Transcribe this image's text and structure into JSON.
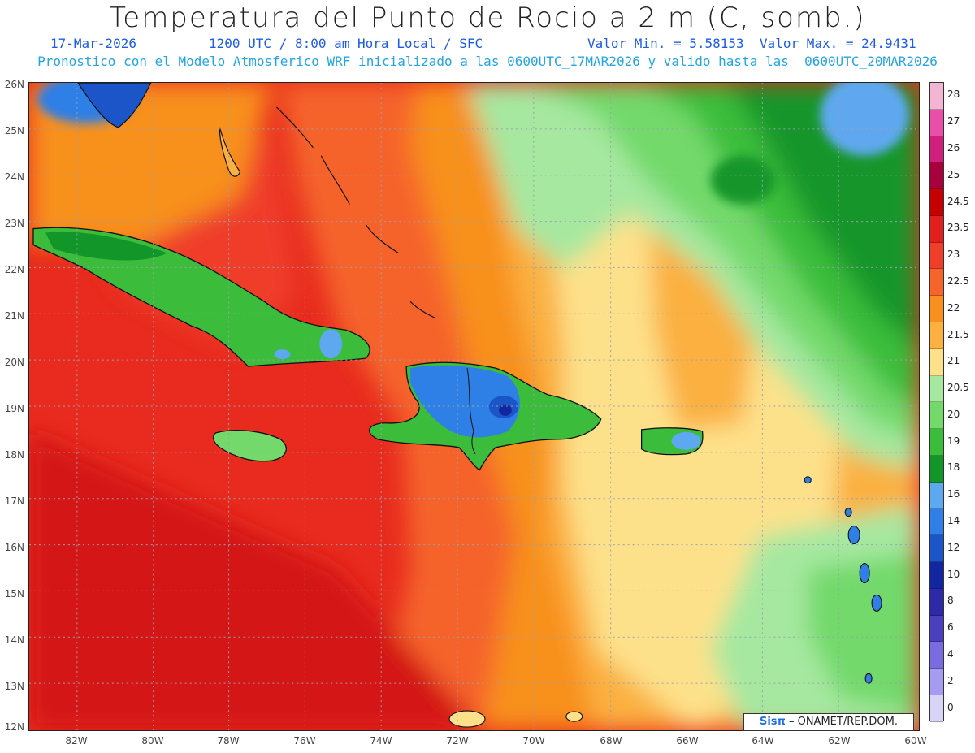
{
  "header": {
    "title": "Temperatura del Punto de Rocio a 2 m (C, somb.)",
    "date": "17-Mar-2026",
    "time": "1200 UTC / 8:00 am Hora Local / SFC",
    "minmax": "Valor Min. = 5.58153  Valor Max. = 24.9431",
    "model_line": "Pronostico con el Modelo Atmosferico WRF inicializado a las 0600UTC_17MAR2026 y valido hasta las  0600UTC_20MAR2026"
  },
  "axes": {
    "lat_labels": [
      "26N",
      "25N",
      "24N",
      "23N",
      "22N",
      "21N",
      "20N",
      "19N",
      "18N",
      "17N",
      "16N",
      "15N",
      "14N",
      "13N",
      "12N"
    ],
    "lon_labels": [
      "82W",
      "80W",
      "78W",
      "76W",
      "74W",
      "72W",
      "70W",
      "68W",
      "66W",
      "64W",
      "62W",
      "60W"
    ]
  },
  "colorbar": {
    "labels": [
      "28",
      "27",
      "26",
      "25",
      "24.5",
      "23.5",
      "23",
      "22.5",
      "22",
      "21.5",
      "21",
      "20.5",
      "20",
      "19",
      "18",
      "16",
      "14",
      "12",
      "10",
      "8",
      "6",
      "4",
      "2",
      "0"
    ],
    "colors": [
      "#f2b5d4",
      "#e84fa9",
      "#d11f7e",
      "#a8003c",
      "#c60000",
      "#e21f1f",
      "#ef3e2a",
      "#f5642a",
      "#f8901f",
      "#fbb040",
      "#fde18a",
      "#a6e8a0",
      "#72d96a",
      "#3bbd3b",
      "#12962a",
      "#5ea8ef",
      "#2e7fe6",
      "#1b55c8",
      "#1226a0",
      "#2c2aa6",
      "#4a3fbd",
      "#7a6be0",
      "#a59bf0",
      "#d7d4f8"
    ]
  },
  "credit": {
    "brand": "Sisπ",
    "text": "– ONAMET/REP.DOM."
  }
}
